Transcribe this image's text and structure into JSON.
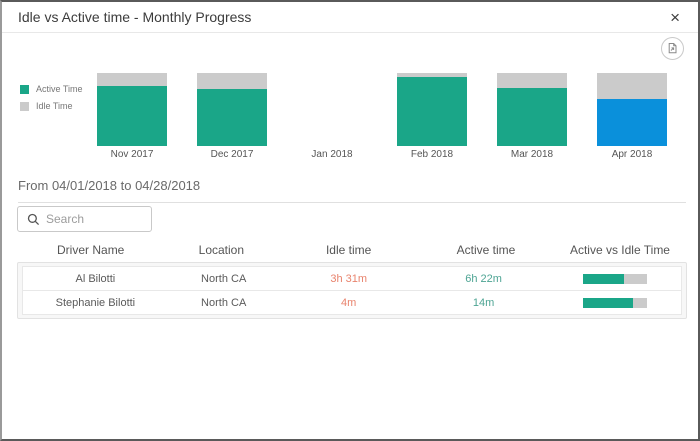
{
  "window": {
    "title": "Idle vs Active time - Monthly Progress",
    "close_glyph": "×"
  },
  "colors": {
    "active": "#1AA688",
    "idle": "#CBCBCB",
    "selected": "#0A90DB",
    "idle_text": "#E8836D",
    "active_text": "#4DA493"
  },
  "chart_data": {
    "type": "bar",
    "subtype": "stacked-100-percent",
    "title": "",
    "xlabel": "",
    "ylabel": "",
    "ylim": [
      0,
      100
    ],
    "grid": false,
    "legend_position": "left",
    "categories": [
      "Nov 2017",
      "Dec 2017",
      "Jan 2018",
      "Feb 2018",
      "Mar 2018",
      "Apr 2018"
    ],
    "series": [
      {
        "name": "Active Time",
        "values": [
          82,
          78,
          null,
          94,
          79,
          64
        ]
      },
      {
        "name": "Idle Time",
        "values": [
          18,
          22,
          null,
          6,
          21,
          36
        ]
      }
    ],
    "highlighted_category": "Apr 2018"
  },
  "filter": {
    "heading": "From 04/01/2018 to 04/28/2018"
  },
  "search": {
    "placeholder": "Search",
    "value": ""
  },
  "table": {
    "headers": [
      "Driver Name",
      "Location",
      "Idle time",
      "Active time",
      "Active vs Idle Time"
    ],
    "rows": [
      {
        "driver": "Al Bilotti",
        "location": "North CA",
        "idle": "3h 31m",
        "active": "6h 22m",
        "active_pct": 64
      },
      {
        "driver": "Stephanie Bilotti",
        "location": "North CA",
        "idle": "4m",
        "active": "14m",
        "active_pct": 78
      }
    ]
  }
}
